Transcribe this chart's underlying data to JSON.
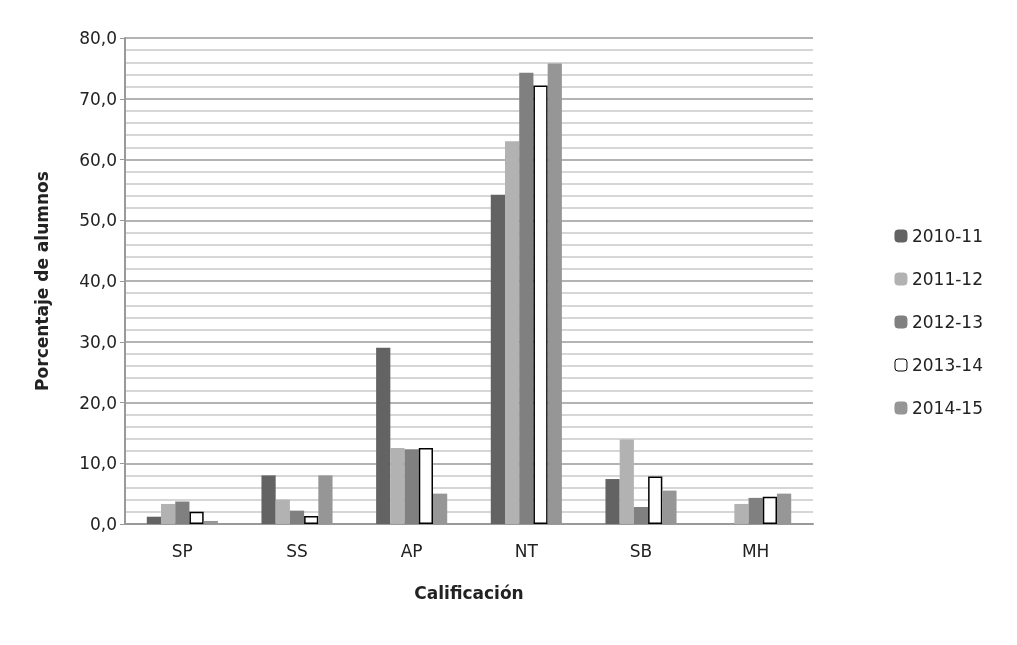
{
  "chart_data": {
    "type": "bar",
    "xlabel": "Calificación",
    "ylabel": "Porcentaje de alumnos",
    "categories": [
      "SP",
      "SS",
      "AP",
      "NT",
      "SB",
      "MH"
    ],
    "series": [
      {
        "name": "2010-11",
        "color": "#636363",
        "values": [
          1.2,
          8.0,
          29.0,
          54.2,
          7.4,
          0
        ]
      },
      {
        "name": "2011-12",
        "color": "#b2b2b2",
        "values": [
          3.3,
          4.0,
          12.5,
          63.0,
          13.9,
          3.3
        ]
      },
      {
        "name": "2012-13",
        "color": "#808080",
        "values": [
          3.7,
          2.2,
          12.3,
          74.3,
          2.8,
          4.3
        ]
      },
      {
        "name": "2013-14",
        "color": "#ffffff",
        "values": [
          2.0,
          1.3,
          12.5,
          72.2,
          7.8,
          4.5
        ]
      },
      {
        "name": "2014-15",
        "color": "#969696",
        "values": [
          0.5,
          8.0,
          5.0,
          75.8,
          5.5,
          5.0
        ]
      }
    ],
    "ylim": [
      0,
      80
    ],
    "yticks": [
      {
        "value": 0,
        "label": "0,0"
      },
      {
        "value": 10,
        "label": "10,0"
      },
      {
        "value": 20,
        "label": "20,0"
      },
      {
        "value": 30,
        "label": "30,0"
      },
      {
        "value": 40,
        "label": "40,0"
      },
      {
        "value": 50,
        "label": "50,0"
      },
      {
        "value": 60,
        "label": "60,0"
      },
      {
        "value": 70,
        "label": "70,0"
      },
      {
        "value": 80,
        "label": "80,0"
      }
    ],
    "grid": true,
    "legend": "right"
  }
}
